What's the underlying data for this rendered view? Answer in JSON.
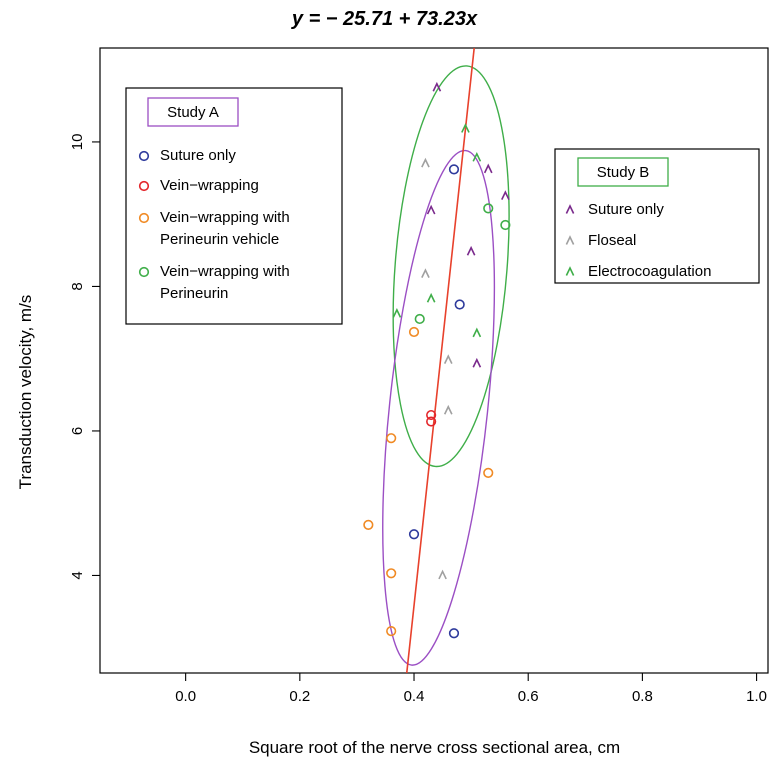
{
  "chart_data": {
    "type": "scatter",
    "title": "y = − 25.71 + 73.23x",
    "xlabel": "Square root of the nerve cross sectional area, cm",
    "ylabel": "Transduction velocity, m/s",
    "xlim": [
      -0.15,
      1.02
    ],
    "ylim": [
      2.65,
      11.3
    ],
    "xticks": [
      "0.0",
      "0.2",
      "0.4",
      "0.6",
      "0.8",
      "1.0"
    ],
    "xtick_values": [
      0.0,
      0.2,
      0.4,
      0.6,
      0.8,
      1.0
    ],
    "yticks": [
      "4",
      "6",
      "8",
      "10"
    ],
    "ytick_values": [
      4,
      6,
      8,
      10
    ],
    "grid": false,
    "regression_line": {
      "intercept": -25.71,
      "slope": 73.23,
      "color": "#e8412c"
    },
    "studies": [
      {
        "name": "Study A",
        "legend_border_color": "#9b4fc4",
        "marker": "o",
        "series": [
          {
            "name": "Suture only",
            "color": "#2e3a9c",
            "points": [
              [
                0.47,
                9.62
              ],
              [
                0.48,
                7.75
              ],
              [
                0.4,
                4.57
              ],
              [
                0.47,
                3.2
              ]
            ]
          },
          {
            "name": "Vein−wrapping",
            "color": "#e3262b",
            "points": [
              [
                0.43,
                6.22
              ],
              [
                0.43,
                6.13
              ]
            ]
          },
          {
            "name": "Vein−wrapping with\nPerineurin vehicle",
            "color": "#f08a24",
            "points": [
              [
                0.4,
                7.37
              ],
              [
                0.36,
                5.9
              ],
              [
                0.53,
                5.42
              ],
              [
                0.32,
                4.7
              ],
              [
                0.36,
                4.03
              ],
              [
                0.36,
                3.23
              ]
            ]
          },
          {
            "name": "Vein−wrapping with\nPerineurin",
            "color": "#3fae49",
            "points": [
              [
                0.41,
                7.55
              ],
              [
                0.53,
                9.08
              ],
              [
                0.56,
                8.85
              ]
            ]
          }
        ]
      },
      {
        "name": "Study B",
        "legend_border_color": "#3fae49",
        "marker": "^",
        "series": [
          {
            "name": "Suture only",
            "color": "#7a2a8c",
            "points": [
              [
                0.44,
                10.75
              ],
              [
                0.43,
                9.05
              ],
              [
                0.53,
                9.62
              ],
              [
                0.56,
                9.25
              ],
              [
                0.5,
                8.48
              ],
              [
                0.51,
                6.93
              ]
            ]
          },
          {
            "name": "Floseal",
            "color": "#a0a0a0",
            "points": [
              [
                0.42,
                9.7
              ],
              [
                0.42,
                8.17
              ],
              [
                0.46,
                6.98
              ],
              [
                0.46,
                6.28
              ],
              [
                0.45,
                4.0
              ]
            ]
          },
          {
            "name": "Electrocoagulation",
            "color": "#3fae49",
            "points": [
              [
                0.49,
                10.18
              ],
              [
                0.51,
                9.78
              ],
              [
                0.37,
                7.62
              ],
              [
                0.43,
                7.83
              ],
              [
                0.51,
                7.35
              ]
            ]
          }
        ]
      }
    ],
    "ellipses": [
      {
        "color": "#3fae49",
        "cx": 0.465,
        "cy": 8.28,
        "rx": 0.098,
        "ry": 2.78,
        "rotation_deg": 4.5
      },
      {
        "color": "#9b4fc4",
        "cx": 0.443,
        "cy": 6.32,
        "rx": 0.086,
        "ry": 3.58,
        "rotation_deg": 6.0
      }
    ],
    "legend_placement": [
      "top-left",
      "top-right"
    ]
  }
}
